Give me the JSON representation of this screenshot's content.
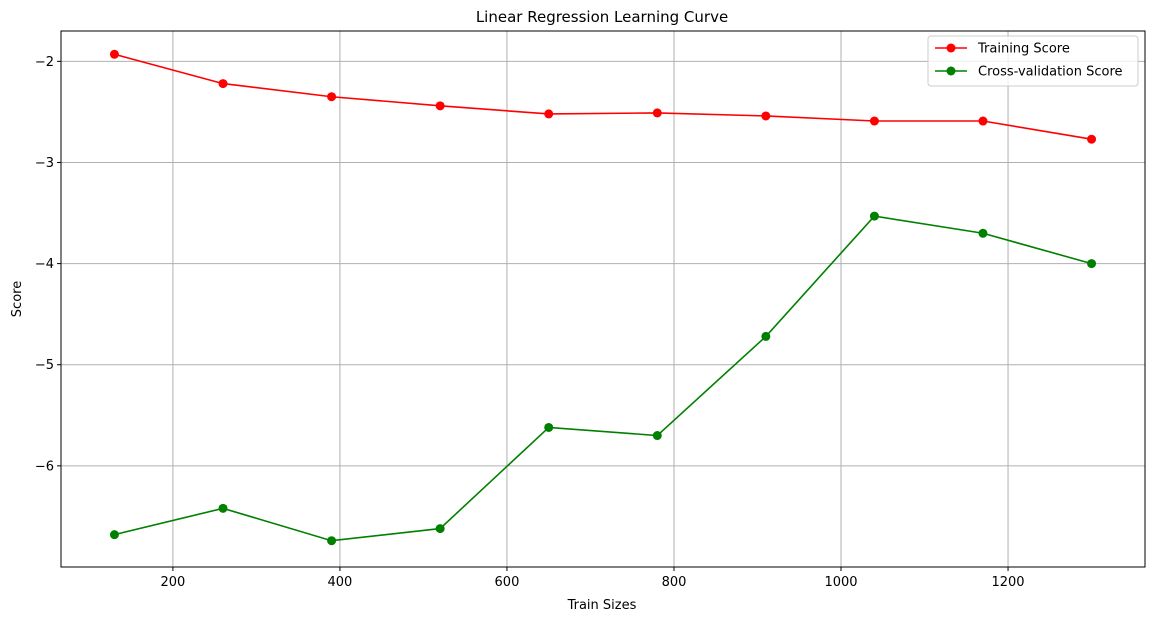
{
  "chart_data": {
    "type": "line",
    "title": "Linear Regression Learning Curve",
    "xlabel": "Train Sizes",
    "ylabel": "Score",
    "xlim": [
      66,
      1364
    ],
    "ylim": [
      -7.0,
      -1.7
    ],
    "x_ticks": [
      200,
      400,
      600,
      800,
      1000,
      1200
    ],
    "y_ticks": [
      -6,
      -5,
      -4,
      -3,
      -2
    ],
    "grid": true,
    "legend_position": "top-right",
    "x": [
      130,
      260,
      390,
      520,
      650,
      780,
      910,
      1040,
      1170,
      1300
    ],
    "series": [
      {
        "name": "Training Score",
        "color": "#ff0000",
        "marker": "circle",
        "values": [
          -1.93,
          -2.22,
          -2.35,
          -2.44,
          -2.52,
          -2.51,
          -2.54,
          -2.59,
          -2.59,
          -2.77
        ]
      },
      {
        "name": "Cross-validation Score",
        "color": "#008000",
        "marker": "circle",
        "values": [
          -6.68,
          -6.42,
          -6.74,
          -6.62,
          -5.62,
          -5.7,
          -4.72,
          -3.53,
          -3.7,
          -4.0
        ]
      }
    ]
  }
}
